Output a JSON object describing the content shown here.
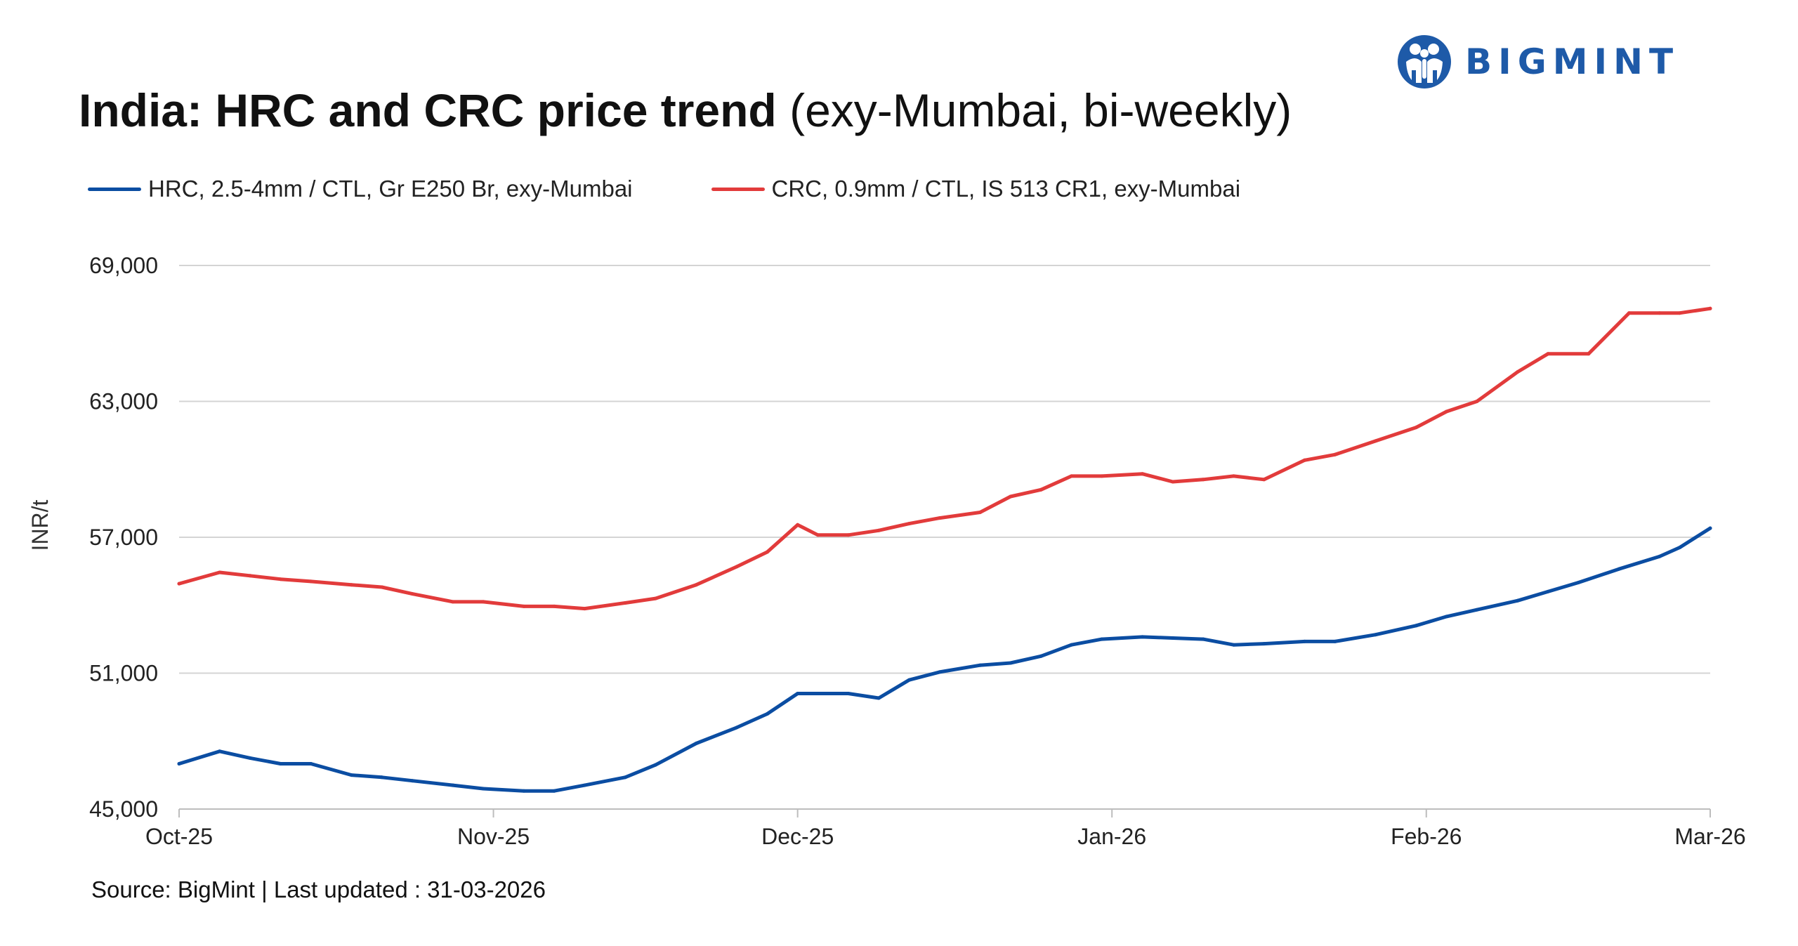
{
  "header": {
    "title_bold": "India: HRC and CRC price trend",
    "title_light": "(exy-Mumbai, bi-weekly)",
    "brand": "BIGMINT",
    "brand_color": "#1e5aa8",
    "brand_icon": "bigmint-people-logo-icon"
  },
  "footer": {
    "source": "Source: BigMint | Last updated : 31-03-2026"
  },
  "chart_data": {
    "type": "line",
    "title": "India: HRC and CRC price trend (exy-Mumbai, bi-weekly)",
    "ylabel": "INR/t",
    "xlabel": "",
    "ylim": [
      45000,
      69000
    ],
    "yticks": [
      45000,
      51000,
      57000,
      63000,
      69000
    ],
    "ytick_labels": [
      "45,000",
      "51,000",
      "57,000",
      "63,000",
      "69,000"
    ],
    "xlim": [
      "2025-10-01",
      "2026-03-01"
    ],
    "xticks": [
      "2025-10-01",
      "2025-11-01",
      "2025-12-01",
      "2026-01-01",
      "2026-02-01",
      "2026-03-01"
    ],
    "xtick_labels": [
      "Oct-25",
      "Nov-25",
      "Dec-25",
      "Jan-26",
      "Feb-26",
      "Mar-26"
    ],
    "grid": true,
    "legend_position": "top-left",
    "series": [
      {
        "name": "HRC, 2.5-4mm / CTL, Gr E250 Br, exy-Mumbai",
        "color": "#0b4da2",
        "x": [
          "2025-10-01",
          "2025-10-05",
          "2025-10-08",
          "2025-10-11",
          "2025-10-14",
          "2025-10-18",
          "2025-10-21",
          "2025-10-24",
          "2025-10-28",
          "2025-10-31",
          "2025-11-04",
          "2025-11-07",
          "2025-11-10",
          "2025-11-14",
          "2025-11-17",
          "2025-11-21",
          "2025-11-25",
          "2025-11-28",
          "2025-12-01",
          "2025-12-03",
          "2025-12-06",
          "2025-12-09",
          "2025-12-12",
          "2025-12-15",
          "2025-12-19",
          "2025-12-22",
          "2025-12-25",
          "2025-12-28",
          "2025-12-31",
          "2026-01-04",
          "2026-01-07",
          "2026-01-10",
          "2026-01-13",
          "2026-01-16",
          "2026-01-20",
          "2026-01-23",
          "2026-01-27",
          "2026-01-31",
          "2026-02-03",
          "2026-02-06",
          "2026-02-10",
          "2026-02-13",
          "2026-02-16",
          "2026-02-20",
          "2026-02-24",
          "2026-02-26",
          "2026-03-01"
        ],
        "values": [
          47000,
          47550,
          47250,
          47000,
          47000,
          46500,
          46400,
          46250,
          46050,
          45900,
          45800,
          45800,
          46050,
          46400,
          46950,
          47900,
          48600,
          49200,
          50100,
          50100,
          50100,
          49900,
          50700,
          51050,
          51350,
          51450,
          51750,
          52250,
          52500,
          52600,
          52550,
          52500,
          52250,
          52300,
          52400,
          52400,
          52700,
          53100,
          53500,
          53800,
          54200,
          54600,
          55000,
          55600,
          56150,
          56550,
          57400
        ]
      },
      {
        "name": "CRC, 0.9mm / CTL, IS 513 CR1, exy-Mumbai",
        "color": "#e23b3b",
        "x": [
          "2025-10-01",
          "2025-10-05",
          "2025-10-08",
          "2025-10-11",
          "2025-10-14",
          "2025-10-18",
          "2025-10-21",
          "2025-10-24",
          "2025-10-28",
          "2025-10-31",
          "2025-11-04",
          "2025-11-07",
          "2025-11-10",
          "2025-11-14",
          "2025-11-17",
          "2025-11-21",
          "2025-11-25",
          "2025-11-28",
          "2025-12-01",
          "2025-12-03",
          "2025-12-06",
          "2025-12-09",
          "2025-12-12",
          "2025-12-15",
          "2025-12-19",
          "2025-12-22",
          "2025-12-25",
          "2025-12-28",
          "2025-12-31",
          "2026-01-04",
          "2026-01-07",
          "2026-01-10",
          "2026-01-13",
          "2026-01-16",
          "2026-01-20",
          "2026-01-23",
          "2026-01-27",
          "2026-01-31",
          "2026-02-03",
          "2026-02-06",
          "2026-02-10",
          "2026-02-13",
          "2026-02-17",
          "2026-02-21",
          "2026-02-24",
          "2026-02-26",
          "2026-03-01"
        ],
        "values": [
          54950,
          55450,
          55300,
          55150,
          55050,
          54900,
          54800,
          54500,
          54150,
          54150,
          53950,
          53950,
          53850,
          54100,
          54300,
          54900,
          55700,
          56350,
          57550,
          57100,
          57100,
          57300,
          57600,
          57850,
          58100,
          58800,
          59100,
          59700,
          59700,
          59800,
          59450,
          59550,
          59700,
          59550,
          60400,
          60650,
          61250,
          61850,
          62550,
          63000,
          64300,
          65100,
          65100,
          66900,
          66900,
          66900,
          67100
        ]
      }
    ]
  }
}
